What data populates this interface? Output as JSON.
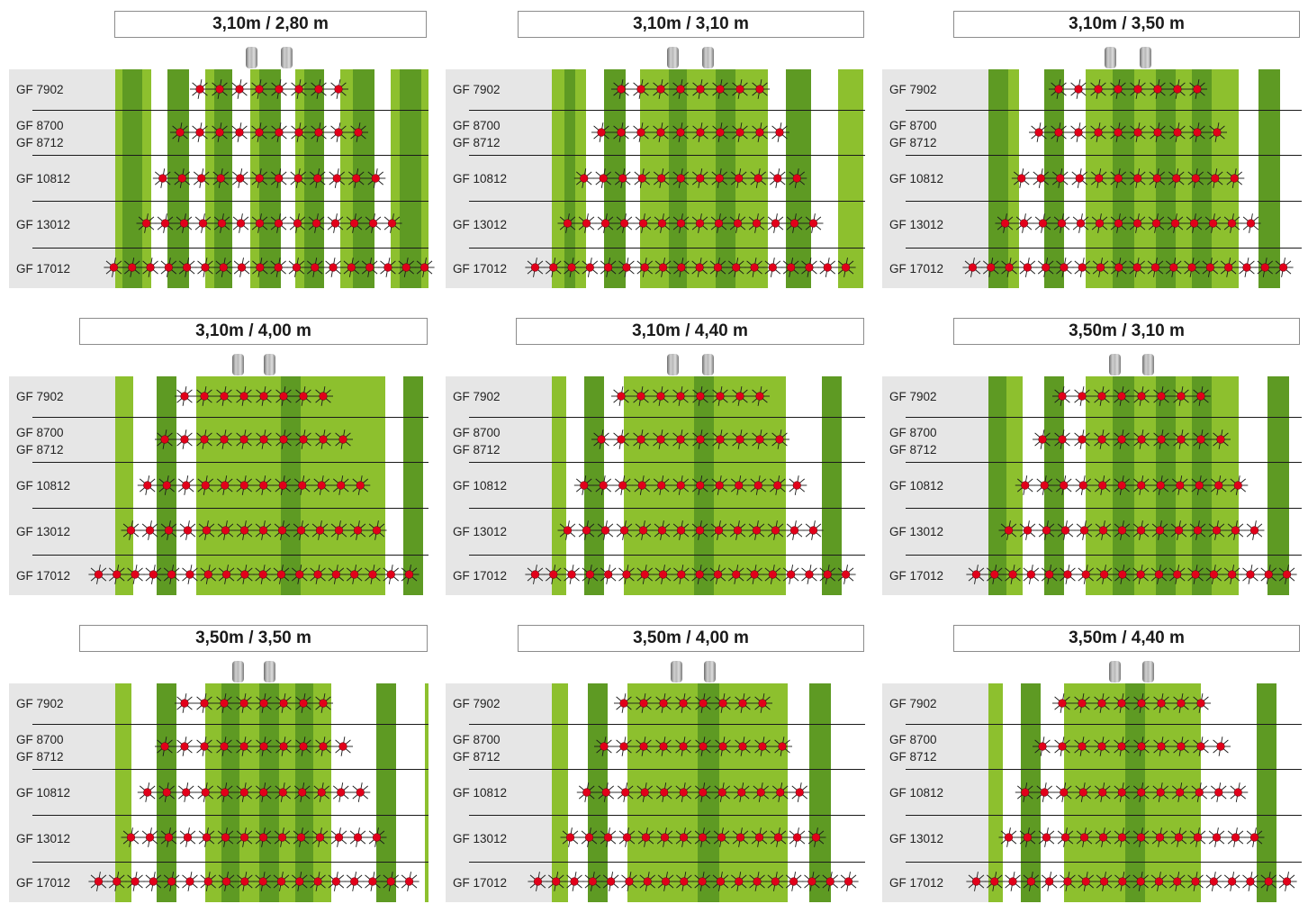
{
  "colors": {
    "light_green": "#8dc02e",
    "dark_green": "#5e9a23",
    "label_bg": "#e6e6e6",
    "rotor_fill": "#e2001a",
    "rotor_spoke": "#1a1a1a"
  },
  "icons": {
    "tractor_wheel": "tractor-wheel-icon",
    "rotor": "rotor-icon"
  },
  "row_labels": [
    "GF 7902",
    "GF 8700\nGF 8712",
    "GF 10812",
    "GF 13012",
    "GF 17012"
  ],
  "panels": [
    {
      "title": "3,10m / 2,80 m",
      "rotor_counts": [
        8,
        10,
        12,
        14,
        18
      ]
    },
    {
      "title": "3,10m / 3,10 m",
      "rotor_counts": [
        8,
        10,
        12,
        14,
        18
      ]
    },
    {
      "title": "3,10m / 3,50 m",
      "rotor_counts": [
        8,
        10,
        12,
        14,
        18
      ]
    },
    {
      "title": "3,10m / 4,00 m",
      "rotor_counts": [
        8,
        10,
        12,
        14,
        18
      ]
    },
    {
      "title": "3,10m / 4,40 m",
      "rotor_counts": [
        8,
        10,
        12,
        14,
        18
      ]
    },
    {
      "title": "3,50m / 3,10 m",
      "rotor_counts": [
        8,
        10,
        12,
        14,
        18
      ]
    },
    {
      "title": "3,50m / 3,50 m",
      "rotor_counts": [
        8,
        10,
        12,
        14,
        18
      ]
    },
    {
      "title": "3,50m / 4,00 m",
      "rotor_counts": [
        8,
        10,
        12,
        14,
        18
      ]
    },
    {
      "title": "3,50m / 4,40 m",
      "rotor_counts": [
        8,
        10,
        12,
        14,
        18
      ]
    }
  ]
}
